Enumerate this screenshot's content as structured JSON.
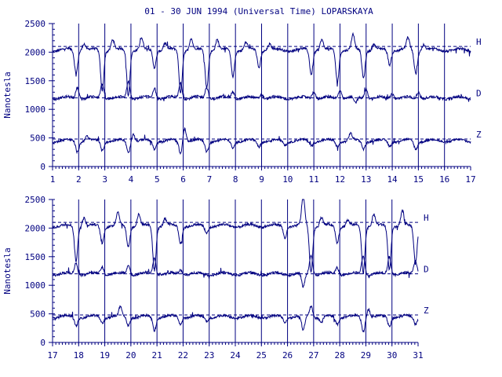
{
  "title": "01 - 30 JUN 1994 (Universal Time) LOPARSKAYA",
  "colors": {
    "ink": "#000080",
    "background": "#ffffff"
  },
  "chart_data": [
    {
      "type": "line",
      "ylabel": "Nanotesla",
      "xlim": [
        1,
        17
      ],
      "ylim": [
        0,
        2500
      ],
      "yticks": [
        0,
        500,
        1000,
        1500,
        2000,
        2500
      ],
      "xticks": [
        1,
        2,
        3,
        4,
        5,
        6,
        7,
        8,
        9,
        10,
        11,
        12,
        13,
        14,
        15,
        16,
        17
      ],
      "baselines": {
        "H": 2100,
        "D": 1200,
        "Z": 480
      },
      "series": [
        {
          "name": "H",
          "base": 2040,
          "disturbances": [
            [
              1.9,
              -400
            ],
            [
              2.2,
              120
            ],
            [
              2.9,
              -700
            ],
            [
              3.3,
              180
            ],
            [
              3.9,
              -780
            ],
            [
              4.4,
              200
            ],
            [
              4.9,
              -300
            ],
            [
              5.3,
              120
            ],
            [
              5.9,
              -750
            ],
            [
              6.3,
              200
            ],
            [
              6.9,
              -650
            ],
            [
              7.3,
              180
            ],
            [
              7.9,
              -450
            ],
            [
              8.4,
              120
            ],
            [
              8.9,
              -300
            ],
            [
              9.3,
              100
            ],
            [
              10.9,
              -420
            ],
            [
              11.3,
              180
            ],
            [
              11.9,
              -550
            ],
            [
              12.5,
              250
            ],
            [
              12.9,
              -480
            ],
            [
              13.3,
              100
            ],
            [
              13.9,
              -250
            ],
            [
              14.6,
              200
            ],
            [
              14.9,
              -400
            ],
            [
              15.2,
              100
            ]
          ]
        },
        {
          "name": "D",
          "base": 1200,
          "disturbances": [
            [
              1.95,
              200
            ],
            [
              2.9,
              260
            ],
            [
              3.9,
              300
            ],
            [
              4.9,
              180
            ],
            [
              5.9,
              280
            ],
            [
              6.9,
              200
            ],
            [
              7.9,
              120
            ],
            [
              9.0,
              80
            ],
            [
              11.0,
              130
            ],
            [
              12.0,
              150
            ],
            [
              12.6,
              -100
            ],
            [
              13.0,
              170
            ],
            [
              14.0,
              90
            ],
            [
              15.0,
              120
            ]
          ]
        },
        {
          "name": "Z",
          "base": 450,
          "disturbances": [
            [
              1.95,
              -180
            ],
            [
              2.3,
              80
            ],
            [
              2.9,
              -160
            ],
            [
              3.9,
              -200
            ],
            [
              4.1,
              130
            ],
            [
              4.9,
              -140
            ],
            [
              5.9,
              -220
            ],
            [
              6.05,
              240
            ],
            [
              6.9,
              -180
            ],
            [
              7.9,
              -120
            ],
            [
              8.9,
              -90
            ],
            [
              9.9,
              -60
            ],
            [
              10.9,
              -70
            ],
            [
              11.9,
              -100
            ],
            [
              12.4,
              120
            ],
            [
              12.9,
              -130
            ],
            [
              13.9,
              -80
            ],
            [
              14.9,
              -140
            ]
          ]
        }
      ]
    },
    {
      "type": "line",
      "ylabel": "Nanotesla",
      "xlim": [
        17,
        31
      ],
      "ylim": [
        0,
        2500
      ],
      "yticks": [
        0,
        500,
        1000,
        1500,
        2000,
        2500
      ],
      "xticks": [
        17,
        18,
        19,
        20,
        21,
        22,
        23,
        24,
        25,
        26,
        27,
        28,
        29,
        30,
        31
      ],
      "baselines": {
        "H": 2100,
        "D": 1200,
        "Z": 480
      },
      "series": [
        {
          "name": "H",
          "base": 2040,
          "disturbances": [
            [
              17.9,
              -600
            ],
            [
              18.2,
              150
            ],
            [
              18.9,
              -300
            ],
            [
              19.5,
              220
            ],
            [
              19.9,
              -350
            ],
            [
              20.3,
              200
            ],
            [
              20.9,
              -780
            ],
            [
              21.3,
              120
            ],
            [
              21.9,
              -300
            ],
            [
              22.9,
              -120
            ],
            [
              25.9,
              -200
            ],
            [
              26.6,
              500
            ],
            [
              26.9,
              -800
            ],
            [
              27.3,
              150
            ],
            [
              27.9,
              -280
            ],
            [
              28.3,
              100
            ],
            [
              28.9,
              -800
            ],
            [
              29.3,
              200
            ],
            [
              29.9,
              -750
            ],
            [
              30.4,
              250
            ],
            [
              30.9,
              -650
            ]
          ]
        },
        {
          "name": "D",
          "base": 1200,
          "disturbances": [
            [
              17.9,
              200
            ],
            [
              18.9,
              130
            ],
            [
              19.9,
              160
            ],
            [
              20.9,
              280
            ],
            [
              21.9,
              80
            ],
            [
              26.6,
              -250
            ],
            [
              26.9,
              350
            ],
            [
              27.9,
              120
            ],
            [
              28.9,
              340
            ],
            [
              29.9,
              320
            ],
            [
              30.9,
              250
            ]
          ]
        },
        {
          "name": "Z",
          "base": 450,
          "disturbances": [
            [
              17.9,
              -150
            ],
            [
              18.9,
              -100
            ],
            [
              19.6,
              160
            ],
            [
              19.9,
              -140
            ],
            [
              20.9,
              -230
            ],
            [
              21.9,
              -120
            ],
            [
              22.9,
              -60
            ],
            [
              25.9,
              -90
            ],
            [
              26.6,
              -250
            ],
            [
              26.9,
              200
            ],
            [
              27.3,
              -100
            ],
            [
              27.9,
              -120
            ],
            [
              28.9,
              -250
            ],
            [
              29.1,
              150
            ],
            [
              29.9,
              -160
            ],
            [
              30.9,
              -120
            ]
          ]
        }
      ]
    }
  ]
}
